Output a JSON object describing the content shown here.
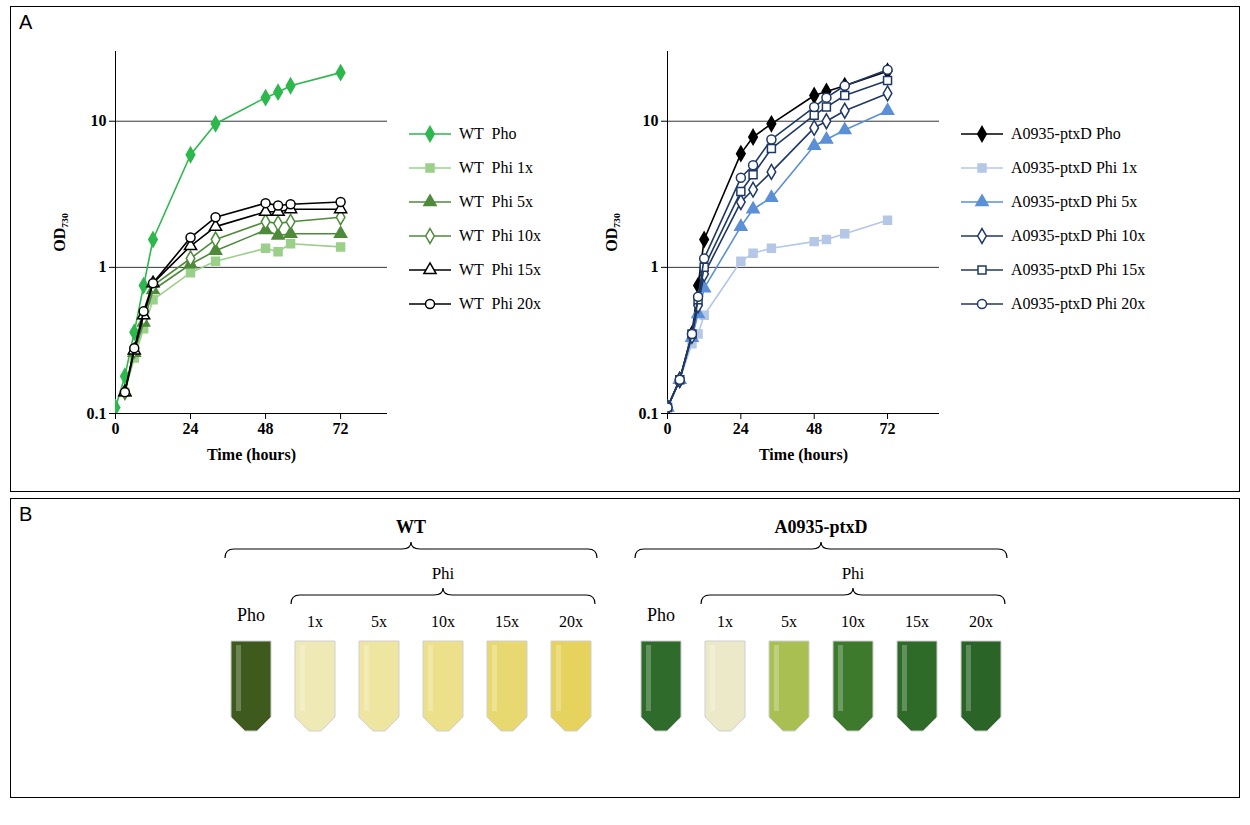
{
  "chart_data": [
    {
      "type": "line",
      "x_label": "Time (hours)",
      "y_label": "OD₇₃₀",
      "xlim": [
        0,
        87
      ],
      "xticks": [
        0,
        24,
        48,
        72
      ],
      "ylim": [
        0.1,
        30
      ],
      "yticks": [
        0.1,
        1,
        10
      ],
      "log": "y",
      "grid": true,
      "legend": "right",
      "series": [
        {
          "name": "WT  Pho",
          "color": "#2db84d",
          "marker": "diamond",
          "x": [
            0,
            3,
            6,
            9,
            12,
            24,
            32,
            48,
            52,
            56,
            72
          ],
          "values": [
            0.11,
            0.18,
            0.36,
            0.75,
            1.55,
            5.9,
            9.6,
            14.5,
            15.8,
            17.5,
            21.5
          ]
        },
        {
          "name": "WT  Phi 1x",
          "color": "#9bd08a",
          "marker": "square",
          "x": [
            3,
            6,
            9,
            12,
            24,
            32,
            48,
            52,
            56,
            72
          ],
          "values": [
            0.14,
            0.24,
            0.38,
            0.6,
            0.92,
            1.1,
            1.35,
            1.28,
            1.45,
            1.38
          ]
        },
        {
          "name": "WT  Phi 5x",
          "color": "#4f8a3b",
          "marker": "triangle",
          "x": [
            3,
            6,
            9,
            12,
            24,
            32,
            48,
            52,
            56,
            72
          ],
          "values": [
            0.14,
            0.26,
            0.42,
            0.7,
            1.05,
            1.3,
            1.8,
            1.65,
            1.7,
            1.7
          ]
        },
        {
          "name": "WT  Phi 10x",
          "color": "#4f8a3b",
          "marker": "open-diamond",
          "x": [
            3,
            6,
            9,
            12,
            24,
            32,
            48,
            52,
            56,
            72
          ],
          "values": [
            0.14,
            0.27,
            0.45,
            0.75,
            1.15,
            1.55,
            2.05,
            2.0,
            2.05,
            2.2
          ]
        },
        {
          "name": "WT  Phi 15x",
          "color": "#000000",
          "marker": "open-triangle",
          "x": [
            3,
            6,
            9,
            12,
            24,
            32,
            48,
            52,
            56,
            72
          ],
          "values": [
            0.14,
            0.27,
            0.47,
            0.78,
            1.4,
            1.9,
            2.4,
            2.4,
            2.5,
            2.5
          ]
        },
        {
          "name": "WT  Phi 20x",
          "color": "#000000",
          "marker": "open-circle",
          "x": [
            3,
            6,
            9,
            12,
            24,
            32,
            48,
            52,
            56,
            72
          ],
          "values": [
            0.14,
            0.28,
            0.5,
            0.78,
            1.6,
            2.2,
            2.75,
            2.65,
            2.7,
            2.8
          ]
        }
      ]
    },
    {
      "type": "line",
      "x_label": "Time (hours)",
      "y_label": "OD₇₃₀",
      "xlim": [
        0,
        89
      ],
      "xticks": [
        0,
        24,
        48,
        72
      ],
      "ylim": [
        0.1,
        30
      ],
      "yticks": [
        0.1,
        1,
        10
      ],
      "log": "y",
      "grid": true,
      "legend": "right",
      "series": [
        {
          "name": "A0935-ptxD Pho",
          "color": "#000000",
          "marker": "diamond",
          "x": [
            0,
            4,
            8,
            10,
            12,
            24,
            28,
            34,
            48,
            52,
            58,
            72
          ],
          "values": [
            0.11,
            0.17,
            0.35,
            0.75,
            1.55,
            6.0,
            7.8,
            9.6,
            15,
            16,
            17.5,
            22
          ]
        },
        {
          "name": "A0935-ptxD Phi 1x",
          "color": "#b4c7e7",
          "marker": "square",
          "x": [
            0,
            4,
            8,
            10,
            12,
            24,
            28,
            34,
            48,
            52,
            58,
            72
          ],
          "values": [
            0.11,
            0.17,
            0.3,
            0.35,
            0.47,
            1.1,
            1.25,
            1.35,
            1.5,
            1.55,
            1.7,
            2.1
          ]
        },
        {
          "name": "A0935-ptxD Phi 5x",
          "color": "#5b8fd6",
          "marker": "triangle",
          "x": [
            0,
            4,
            8,
            10,
            12,
            24,
            28,
            34,
            48,
            52,
            58,
            72
          ],
          "values": [
            0.11,
            0.17,
            0.33,
            0.48,
            0.72,
            1.9,
            2.5,
            3.0,
            6.8,
            7.5,
            8.7,
            11.8
          ]
        },
        {
          "name": "A0935-ptxD Phi 10x",
          "color": "#1f3864",
          "marker": "open-diamond",
          "x": [
            0,
            4,
            8,
            10,
            12,
            24,
            28,
            34,
            48,
            52,
            58,
            72
          ],
          "values": [
            0.11,
            0.17,
            0.34,
            0.55,
            0.9,
            2.8,
            3.4,
            4.5,
            9.0,
            10,
            11.8,
            15.5
          ]
        },
        {
          "name": "A0935-ptxD Phi 15x",
          "color": "#1f3864",
          "marker": "open-square",
          "x": [
            0,
            4,
            8,
            10,
            12,
            24,
            28,
            34,
            48,
            52,
            58,
            72
          ],
          "values": [
            0.11,
            0.17,
            0.35,
            0.6,
            1.0,
            3.3,
            4.3,
            6.5,
            11,
            12.5,
            15,
            19
          ]
        },
        {
          "name": "A0935-ptxD Phi 20x",
          "color": "#1f3864",
          "marker": "open-circle",
          "x": [
            0,
            4,
            8,
            10,
            12,
            24,
            28,
            34,
            48,
            52,
            58,
            72
          ],
          "values": [
            0.11,
            0.17,
            0.35,
            0.63,
            1.15,
            4.1,
            5.0,
            7.5,
            12.5,
            14.5,
            17.5,
            22.5
          ]
        }
      ]
    }
  ],
  "panel_a_label": "A",
  "panel_b": {
    "label": "B",
    "groups": [
      {
        "name": "WT",
        "control": {
          "label": "Pho",
          "color": "#3e5a1c"
        },
        "subgroup": {
          "name": "Phi",
          "tubes": [
            {
              "label": "1x",
              "color": "#efe9b5"
            },
            {
              "label": "5x",
              "color": "#eee5a0"
            },
            {
              "label": "10x",
              "color": "#ede08a"
            },
            {
              "label": "15x",
              "color": "#e8d870"
            },
            {
              "label": "20x",
              "color": "#e6d35e"
            }
          ]
        }
      },
      {
        "name": "A0935-ptxD",
        "control": {
          "label": "Pho",
          "color": "#2f6b2a"
        },
        "subgroup": {
          "name": "Phi",
          "tubes": [
            {
              "label": "1x",
              "color": "#ece9c8"
            },
            {
              "label": "5x",
              "color": "#a9bf52"
            },
            {
              "label": "10x",
              "color": "#3d7a2c"
            },
            {
              "label": "15x",
              "color": "#2e6a28"
            },
            {
              "label": "20x",
              "color": "#2a6426"
            }
          ]
        }
      }
    ]
  }
}
